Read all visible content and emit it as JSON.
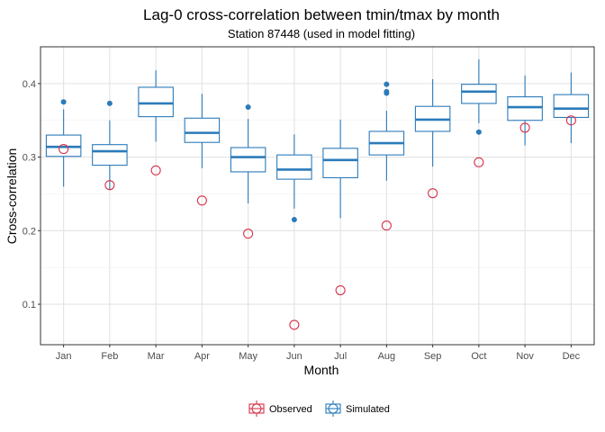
{
  "chart_data": {
    "type": "boxplot",
    "title": "Lag-0 cross-correlation between tmin/tmax by month",
    "subtitle": "Station 87448 (used in model fitting)",
    "xlabel": "Month",
    "ylabel": "Cross-correlation",
    "categories": [
      "Jan",
      "Feb",
      "Mar",
      "Apr",
      "May",
      "Jun",
      "Jul",
      "Aug",
      "Sep",
      "Oct",
      "Nov",
      "Dec"
    ],
    "ylim": [
      0.045,
      0.45
    ],
    "yticks": [
      0.1,
      0.2,
      0.3,
      0.4
    ],
    "ytick_labels": [
      "0.1",
      "0.2",
      "0.3",
      "0.4"
    ],
    "grid": true,
    "legend_position": "bottom",
    "series": [
      {
        "name": "Simulated",
        "kind": "box",
        "color": "#2b7bba",
        "boxes": [
          {
            "lower_whisker": 0.26,
            "q1": 0.301,
            "median": 0.314,
            "q3": 0.33,
            "upper_whisker": 0.365,
            "outliers": [
              0.375
            ]
          },
          {
            "lower_whisker": 0.255,
            "q1": 0.289,
            "median": 0.308,
            "q3": 0.317,
            "upper_whisker": 0.35,
            "outliers": [
              0.373
            ]
          },
          {
            "lower_whisker": 0.321,
            "q1": 0.355,
            "median": 0.373,
            "q3": 0.395,
            "upper_whisker": 0.418,
            "outliers": []
          },
          {
            "lower_whisker": 0.285,
            "q1": 0.32,
            "median": 0.333,
            "q3": 0.353,
            "upper_whisker": 0.386,
            "outliers": []
          },
          {
            "lower_whisker": 0.237,
            "q1": 0.28,
            "median": 0.3,
            "q3": 0.313,
            "upper_whisker": 0.352,
            "outliers": [
              0.368
            ]
          },
          {
            "lower_whisker": 0.23,
            "q1": 0.27,
            "median": 0.283,
            "q3": 0.303,
            "upper_whisker": 0.331,
            "outliers": [
              0.215
            ]
          },
          {
            "lower_whisker": 0.217,
            "q1": 0.272,
            "median": 0.296,
            "q3": 0.312,
            "upper_whisker": 0.351,
            "outliers": []
          },
          {
            "lower_whisker": 0.268,
            "q1": 0.303,
            "median": 0.319,
            "q3": 0.335,
            "upper_whisker": 0.363,
            "outliers": [
              0.387,
              0.389,
              0.399
            ]
          },
          {
            "lower_whisker": 0.287,
            "q1": 0.335,
            "median": 0.351,
            "q3": 0.369,
            "upper_whisker": 0.406,
            "outliers": []
          },
          {
            "lower_whisker": 0.346,
            "q1": 0.373,
            "median": 0.389,
            "q3": 0.399,
            "upper_whisker": 0.433,
            "outliers": [
              0.334
            ]
          },
          {
            "lower_whisker": 0.316,
            "q1": 0.35,
            "median": 0.368,
            "q3": 0.382,
            "upper_whisker": 0.411,
            "outliers": []
          },
          {
            "lower_whisker": 0.319,
            "q1": 0.354,
            "median": 0.366,
            "q3": 0.385,
            "upper_whisker": 0.415,
            "outliers": []
          }
        ]
      },
      {
        "name": "Observed",
        "kind": "point",
        "color": "#d6334a",
        "values": [
          0.311,
          0.262,
          0.282,
          0.241,
          0.196,
          0.072,
          0.119,
          0.207,
          0.251,
          0.293,
          0.34,
          0.35
        ]
      }
    ]
  }
}
